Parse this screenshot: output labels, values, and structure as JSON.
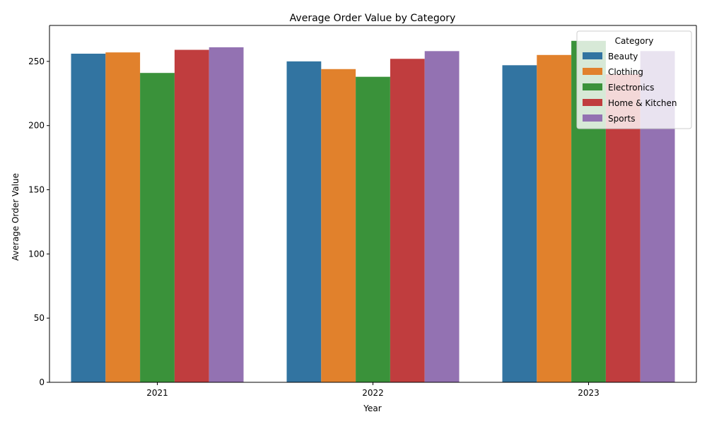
{
  "chart_data": {
    "type": "bar",
    "title": "Average Order Value by Category",
    "xlabel": "Year",
    "ylabel": "Average Order Value",
    "categories": [
      "2021",
      "2022",
      "2023"
    ],
    "ylim": [
      0,
      278
    ],
    "yticks": [
      0,
      50,
      100,
      150,
      200,
      250
    ],
    "grid": false,
    "legend": {
      "title": "Category",
      "placement": "top-right"
    },
    "series": [
      {
        "name": "Beauty",
        "color": "#3274a1",
        "values": [
          256,
          250,
          247
        ]
      },
      {
        "name": "Clothing",
        "color": "#e1812c",
        "values": [
          257,
          244,
          255
        ]
      },
      {
        "name": "Electronics",
        "color": "#3a923a",
        "values": [
          241,
          238,
          266
        ]
      },
      {
        "name": "Home & Kitchen",
        "color": "#c03d3e",
        "values": [
          259,
          252,
          240
        ]
      },
      {
        "name": "Sports",
        "color": "#9372b2",
        "values": [
          261,
          258,
          258
        ]
      }
    ]
  }
}
